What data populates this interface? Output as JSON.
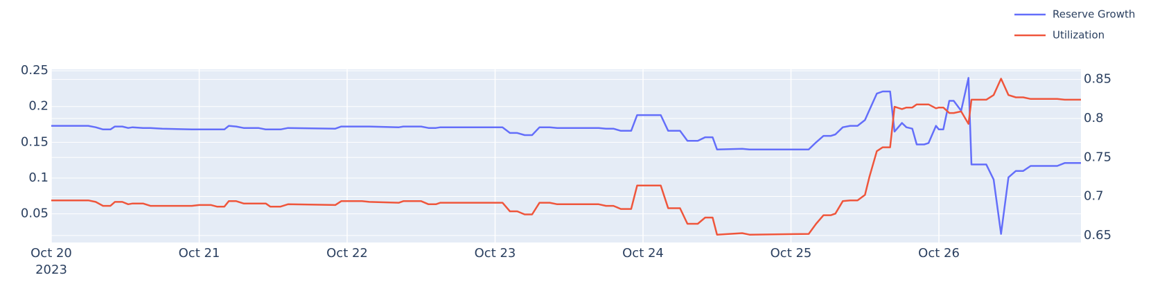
{
  "chart_data": {
    "type": "line",
    "x": [
      0,
      0.25,
      0.3,
      0.35,
      0.4,
      0.43,
      0.48,
      0.52,
      0.55,
      0.62,
      0.67,
      0.75,
      0.95,
      1.0,
      1.08,
      1.12,
      1.17,
      1.2,
      1.25,
      1.3,
      1.4,
      1.45,
      1.48,
      1.55,
      1.6,
      1.92,
      1.96,
      2.1,
      2.15,
      2.35,
      2.38,
      2.5,
      2.55,
      2.6,
      2.63,
      3.05,
      3.1,
      3.15,
      3.2,
      3.25,
      3.3,
      3.37,
      3.42,
      3.7,
      3.75,
      3.8,
      3.85,
      3.92,
      3.96,
      4.12,
      4.17,
      4.25,
      4.3,
      4.37,
      4.42,
      4.47,
      4.5,
      4.67,
      4.72,
      5.12,
      5.17,
      5.22,
      5.27,
      5.3,
      5.35,
      5.4,
      5.45,
      5.5,
      5.53,
      5.58,
      5.62,
      5.67,
      5.7,
      5.75,
      5.78,
      5.82,
      5.85,
      5.9,
      5.93,
      5.98,
      6.0,
      6.03,
      6.07,
      6.1,
      6.15,
      6.2,
      6.22,
      6.32,
      6.37,
      6.42,
      6.47,
      6.52,
      6.57,
      6.62,
      6.67,
      6.8,
      6.85,
      6.96
    ],
    "series": [
      {
        "name": "Reserve Growth",
        "color": "#636efa",
        "axis": "y",
        "values": [
          0.173,
          0.173,
          0.171,
          0.168,
          0.168,
          0.172,
          0.172,
          0.17,
          0.171,
          0.17,
          0.17,
          0.169,
          0.168,
          0.168,
          0.168,
          0.168,
          0.168,
          0.173,
          0.172,
          0.17,
          0.17,
          0.168,
          0.168,
          0.168,
          0.17,
          0.169,
          0.172,
          0.172,
          0.172,
          0.171,
          0.172,
          0.172,
          0.17,
          0.17,
          0.171,
          0.171,
          0.163,
          0.163,
          0.16,
          0.16,
          0.171,
          0.171,
          0.17,
          0.17,
          0.169,
          0.169,
          0.166,
          0.166,
          0.188,
          0.188,
          0.166,
          0.166,
          0.152,
          0.152,
          0.157,
          0.157,
          0.14,
          0.141,
          0.14,
          0.14,
          0.15,
          0.159,
          0.159,
          0.161,
          0.171,
          0.173,
          0.173,
          0.181,
          0.195,
          0.218,
          0.221,
          0.221,
          0.165,
          0.177,
          0.171,
          0.169,
          0.147,
          0.147,
          0.149,
          0.173,
          0.168,
          0.168,
          0.208,
          0.208,
          0.194,
          0.24,
          0.119,
          0.119,
          0.098,
          0.022,
          0.101,
          0.11,
          0.11,
          0.117,
          0.117,
          0.117,
          0.121,
          0.121
        ]
      },
      {
        "name": "Utilization",
        "color": "#EF553B",
        "axis": "y2",
        "values": [
          0.695,
          0.695,
          0.693,
          0.688,
          0.688,
          0.693,
          0.693,
          0.69,
          0.691,
          0.691,
          0.688,
          0.688,
          0.688,
          0.689,
          0.689,
          0.687,
          0.687,
          0.694,
          0.694,
          0.691,
          0.691,
          0.691,
          0.687,
          0.687,
          0.69,
          0.689,
          0.694,
          0.694,
          0.693,
          0.692,
          0.694,
          0.694,
          0.69,
          0.69,
          0.692,
          0.692,
          0.681,
          0.681,
          0.677,
          0.677,
          0.692,
          0.692,
          0.69,
          0.69,
          0.688,
          0.688,
          0.684,
          0.684,
          0.714,
          0.714,
          0.685,
          0.685,
          0.665,
          0.665,
          0.673,
          0.673,
          0.651,
          0.653,
          0.651,
          0.652,
          0.665,
          0.676,
          0.676,
          0.678,
          0.694,
          0.695,
          0.695,
          0.702,
          0.725,
          0.758,
          0.763,
          0.763,
          0.815,
          0.812,
          0.814,
          0.814,
          0.818,
          0.818,
          0.818,
          0.813,
          0.814,
          0.814,
          0.807,
          0.807,
          0.809,
          0.793,
          0.824,
          0.824,
          0.83,
          0.851,
          0.83,
          0.827,
          0.827,
          0.825,
          0.825,
          0.825,
          0.824,
          0.824
        ]
      }
    ],
    "xlim": [
      0,
      6.96
    ],
    "xticks": [
      {
        "value": 0,
        "label": "Oct 20"
      },
      {
        "value": 1,
        "label": "Oct 21"
      },
      {
        "value": 2,
        "label": "Oct 22"
      },
      {
        "value": 3,
        "label": "Oct 23"
      },
      {
        "value": 4,
        "label": "Oct 24"
      },
      {
        "value": 5,
        "label": "Oct 25"
      },
      {
        "value": 6,
        "label": "Oct 26"
      }
    ],
    "x_year": "2023",
    "ylim": [
      0.01,
      0.252
    ],
    "yticks": [
      0.05,
      0.1,
      0.15,
      0.2,
      0.25
    ],
    "y2lim": [
      0.641,
      0.863
    ],
    "y2ticks": [
      0.65,
      0.7,
      0.75,
      0.8,
      0.85
    ],
    "grid": true,
    "legend": "top-right",
    "background": "#E5ECF6"
  }
}
